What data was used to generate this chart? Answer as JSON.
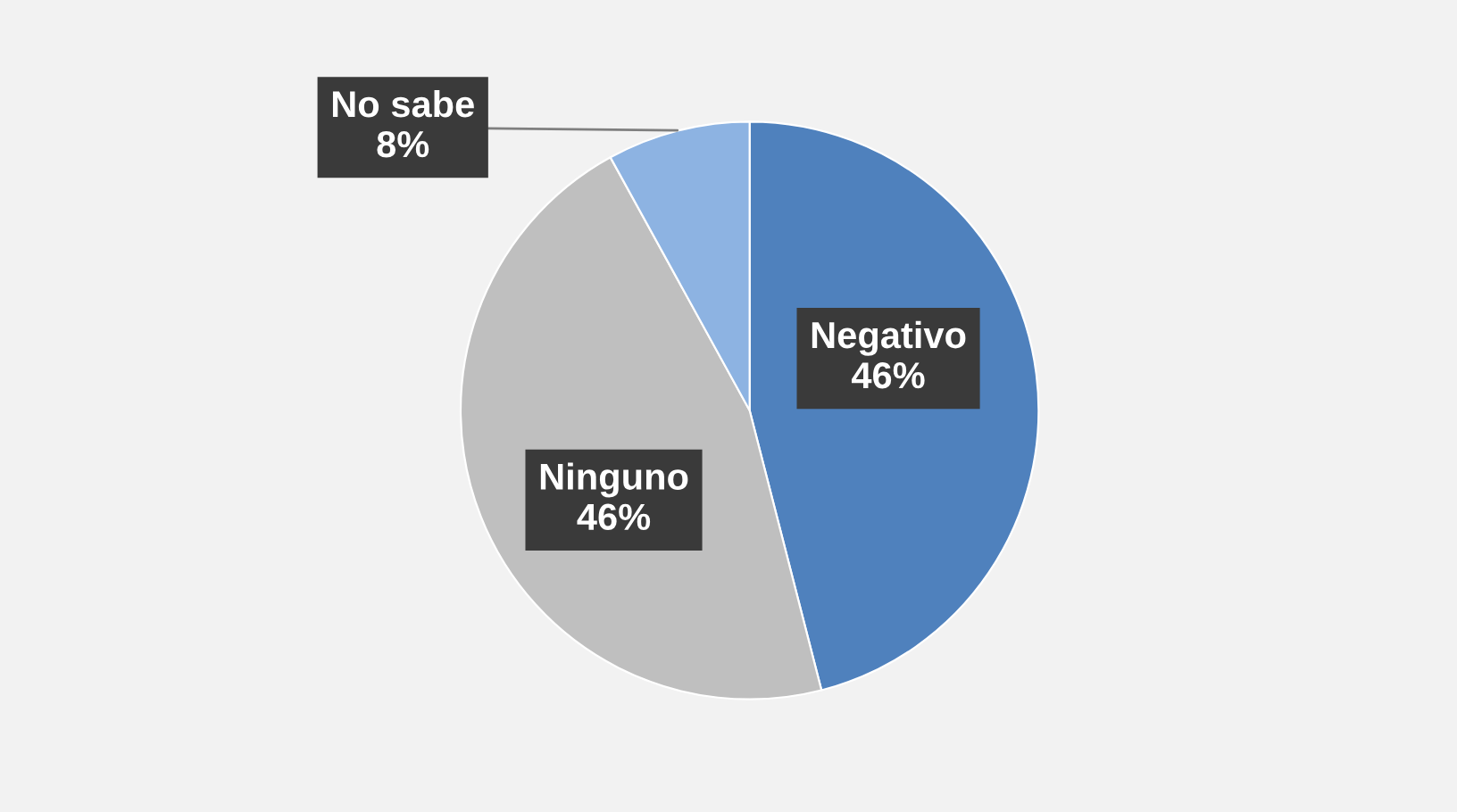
{
  "chart_data": {
    "type": "pie",
    "categories": [
      "Negativo",
      "Ninguno",
      "No sabe"
    ],
    "values": [
      46,
      46,
      8
    ],
    "colors": [
      "#4f81bd",
      "#bfbfbf",
      "#8db3e2"
    ],
    "value_labels": [
      "46%",
      "46%",
      "8%"
    ],
    "legend": false
  }
}
